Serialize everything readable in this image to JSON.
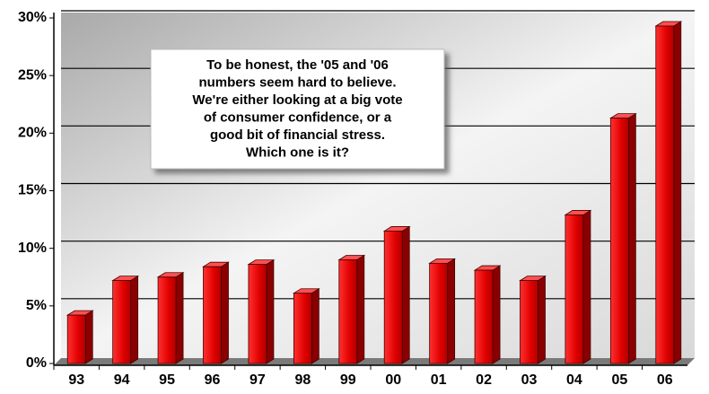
{
  "chart_data": {
    "type": "bar",
    "categories": [
      "93",
      "94",
      "95",
      "96",
      "97",
      "98",
      "99",
      "00",
      "01",
      "02",
      "03",
      "04",
      "05",
      "06"
    ],
    "values": [
      4.2,
      7.2,
      7.5,
      8.4,
      8.6,
      6.1,
      9.0,
      11.5,
      8.7,
      8.1,
      7.2,
      12.9,
      21.3,
      29.3
    ],
    "color": "#e00000",
    "ylim": [
      0,
      30
    ],
    "yticks": [
      {
        "value": 0,
        "label": "0%"
      },
      {
        "value": 5,
        "label": "5%"
      },
      {
        "value": 10,
        "label": "10%"
      },
      {
        "value": 15,
        "label": "15%"
      },
      {
        "value": 20,
        "label": "20%"
      },
      {
        "value": 25,
        "label": "25%"
      },
      {
        "value": 30,
        "label": "30%"
      }
    ],
    "grid": true,
    "annotation": [
      "To be honest, the '05 and '06",
      "numbers seem hard to believe.",
      "We're either looking at a big vote",
      "of consumer confidence, or a",
      "good bit of financial stress.",
      "Which one is it?"
    ]
  }
}
